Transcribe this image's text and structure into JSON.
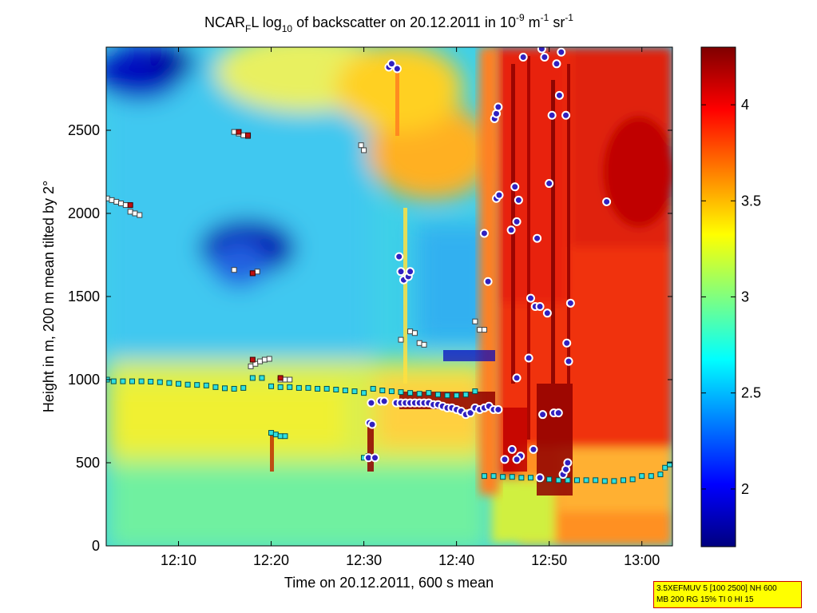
{
  "chart_data": {
    "type": "heatmap",
    "title": {
      "prefix": "NCAR",
      "sub_f": "F",
      "after_f": "L log",
      "sub_10": "10",
      "middle": " of backscatter on 20.12.2011 in 10",
      "sup_exp": "-9",
      "unit_m": " m",
      "sup_m": "-1",
      "unit_sr": " sr",
      "sup_sr": "-1"
    },
    "xlabel": "Time on 20.12.2011, 600 s mean",
    "ylabel": "Height in m, 200 m mean tilted by 2°",
    "x_ticks": [
      "12:10",
      "12:20",
      "12:30",
      "12:40",
      "12:50",
      "13:00"
    ],
    "x_tick_minutes": [
      10,
      20,
      30,
      40,
      50,
      60
    ],
    "xlim_minutes_after_12": [
      2.2,
      63.3
    ],
    "y_ticks": [
      0,
      500,
      1000,
      1500,
      2000,
      2500
    ],
    "ylim": [
      0,
      3000
    ],
    "colorbar": {
      "ticks": [
        2,
        2.5,
        3,
        3.5,
        4
      ],
      "labels": [
        "2",
        "2.5",
        "3",
        "3.5",
        "4"
      ],
      "range": [
        1.7,
        4.3
      ],
      "colormap": "jet"
    },
    "series": [
      {
        "marker": "cyan-square",
        "points": [
          [
            2.3,
            1000
          ],
          [
            3,
            990
          ],
          [
            4,
            990
          ],
          [
            5,
            990
          ],
          [
            6,
            990
          ],
          [
            7,
            988
          ],
          [
            8,
            985
          ],
          [
            9,
            980
          ],
          [
            10,
            975
          ],
          [
            11,
            970
          ],
          [
            12,
            968
          ],
          [
            13,
            965
          ],
          [
            14,
            955
          ],
          [
            15,
            948
          ],
          [
            16,
            945
          ],
          [
            17,
            950
          ],
          [
            18,
            1010
          ],
          [
            19,
            1010
          ],
          [
            20,
            960
          ],
          [
            21,
            955
          ],
          [
            22,
            955
          ],
          [
            23,
            950
          ],
          [
            24,
            950
          ],
          [
            25,
            945
          ],
          [
            26,
            945
          ],
          [
            27,
            940
          ],
          [
            28,
            935
          ],
          [
            29,
            930
          ],
          [
            30,
            920
          ],
          [
            31,
            945
          ],
          [
            32,
            935
          ],
          [
            33,
            930
          ],
          [
            34,
            925
          ],
          [
            35,
            920
          ],
          [
            36,
            915
          ],
          [
            37,
            920
          ],
          [
            38,
            910
          ],
          [
            39,
            905
          ],
          [
            40,
            905
          ],
          [
            41,
            910
          ],
          [
            42,
            930
          ],
          [
            43,
            420
          ],
          [
            44,
            420
          ],
          [
            45,
            415
          ],
          [
            46,
            415
          ],
          [
            47,
            410
          ],
          [
            48,
            410
          ],
          [
            49,
            400
          ],
          [
            50,
            400
          ],
          [
            51,
            395
          ],
          [
            52,
            395
          ],
          [
            53,
            395
          ],
          [
            54,
            395
          ],
          [
            55,
            395
          ],
          [
            56,
            390
          ],
          [
            57,
            390
          ],
          [
            58,
            395
          ],
          [
            59,
            400
          ],
          [
            60,
            420
          ],
          [
            61,
            420
          ],
          [
            62,
            430
          ],
          [
            62.5,
            470
          ],
          [
            63,
            490
          ]
        ]
      },
      {
        "marker": "cyan-square-lower",
        "points": [
          [
            20,
            680
          ],
          [
            20.5,
            670
          ],
          [
            21,
            660
          ],
          [
            21.5,
            660
          ],
          [
            30,
            530
          ],
          [
            30.5,
            540
          ]
        ]
      },
      {
        "marker": "white-square",
        "points": [
          [
            2.3,
            2090
          ],
          [
            2.8,
            2080
          ],
          [
            3.3,
            2070
          ],
          [
            3.8,
            2060
          ],
          [
            4.3,
            2050
          ],
          [
            4.8,
            2010
          ],
          [
            5.3,
            2000
          ],
          [
            5.8,
            1990
          ],
          [
            16,
            2490
          ],
          [
            16.5,
            2480
          ],
          [
            17,
            2470
          ],
          [
            17.5,
            2465
          ],
          [
            16,
            1660
          ],
          [
            18,
            1640
          ],
          [
            18.5,
            1650
          ],
          [
            17.8,
            1080
          ],
          [
            18.3,
            1095
          ],
          [
            18.8,
            1110
          ],
          [
            19.3,
            1120
          ],
          [
            19.8,
            1125
          ],
          [
            21,
            1000
          ],
          [
            21.5,
            1000
          ],
          [
            22,
            1000
          ],
          [
            29.7,
            2410
          ],
          [
            30,
            2380
          ],
          [
            34,
            1240
          ],
          [
            35,
            1290
          ],
          [
            35.5,
            1280
          ],
          [
            36,
            1220
          ],
          [
            36.5,
            1210
          ],
          [
            42,
            1350
          ],
          [
            42.5,
            1300
          ],
          [
            43,
            1300
          ]
        ]
      },
      {
        "marker": "red-square",
        "points": [
          [
            4.8,
            2050
          ],
          [
            16.5,
            2490
          ],
          [
            17.5,
            2470
          ],
          [
            18,
            1640
          ],
          [
            21,
            1010
          ],
          [
            18,
            1120
          ]
        ]
      },
      {
        "marker": "blue-circle",
        "points": [
          [
            32.7,
            2880
          ],
          [
            33,
            2900
          ],
          [
            33.6,
            2870
          ],
          [
            33.8,
            1740
          ],
          [
            34,
            1650
          ],
          [
            34.3,
            1600
          ],
          [
            34.8,
            1620
          ],
          [
            35,
            1650
          ],
          [
            30.6,
            740
          ],
          [
            30.8,
            860
          ],
          [
            30.9,
            730
          ],
          [
            30.5,
            530
          ],
          [
            31.2,
            530
          ],
          [
            43,
            1880
          ],
          [
            43.4,
            1590
          ],
          [
            44.1,
            2570
          ],
          [
            44.3,
            2600
          ],
          [
            44.5,
            2640
          ],
          [
            44.3,
            2090
          ],
          [
            44.6,
            2110
          ],
          [
            45.9,
            1900
          ],
          [
            46.3,
            2160
          ],
          [
            46.5,
            1950
          ],
          [
            46.7,
            2080
          ],
          [
            46.9,
            540
          ],
          [
            46.5,
            1010
          ],
          [
            45.2,
            520
          ],
          [
            46,
            580
          ],
          [
            46.5,
            520
          ],
          [
            47.2,
            2940
          ],
          [
            47.8,
            1130
          ],
          [
            48,
            1490
          ],
          [
            48.3,
            580
          ],
          [
            48.5,
            1440
          ],
          [
            48.7,
            1850
          ],
          [
            49,
            1440
          ],
          [
            49.2,
            2990
          ],
          [
            49.3,
            790
          ],
          [
            49.5,
            2940
          ],
          [
            49.8,
            1400
          ],
          [
            50,
            2180
          ],
          [
            50.3,
            2590
          ],
          [
            50.5,
            800
          ],
          [
            50.8,
            2900
          ],
          [
            51,
            800
          ],
          [
            51.1,
            2710
          ],
          [
            51.3,
            2970
          ],
          [
            51.5,
            430
          ],
          [
            51.8,
            2590
          ],
          [
            51.8,
            460
          ],
          [
            51.9,
            1220
          ],
          [
            52,
            500
          ],
          [
            52.3,
            1460
          ],
          [
            52.1,
            1110
          ],
          [
            56.2,
            2070
          ],
          [
            49,
            410
          ]
        ]
      },
      {
        "marker": "blue-circle-track",
        "points": [
          [
            33.5,
            860
          ],
          [
            34,
            860
          ],
          [
            34.5,
            860
          ],
          [
            35,
            860
          ],
          [
            35.5,
            860
          ],
          [
            36,
            860
          ],
          [
            36.5,
            860
          ],
          [
            37,
            860
          ],
          [
            37.5,
            850
          ],
          [
            38,
            850
          ],
          [
            38.5,
            840
          ],
          [
            39,
            830
          ],
          [
            39.5,
            830
          ],
          [
            40,
            820
          ],
          [
            40.5,
            810
          ],
          [
            41,
            790
          ],
          [
            41.5,
            800
          ],
          [
            42,
            830
          ],
          [
            42.5,
            820
          ],
          [
            43,
            830
          ],
          [
            43.5,
            840
          ],
          [
            44,
            820
          ],
          [
            44.5,
            820
          ],
          [
            31.8,
            870
          ],
          [
            32.2,
            870
          ]
        ]
      }
    ]
  },
  "infobox": {
    "line1": "3.5XEFMUV 5 [100 2500] NH 600",
    "line2": "MB 200 RG 15% TI 0 HI 15"
  }
}
